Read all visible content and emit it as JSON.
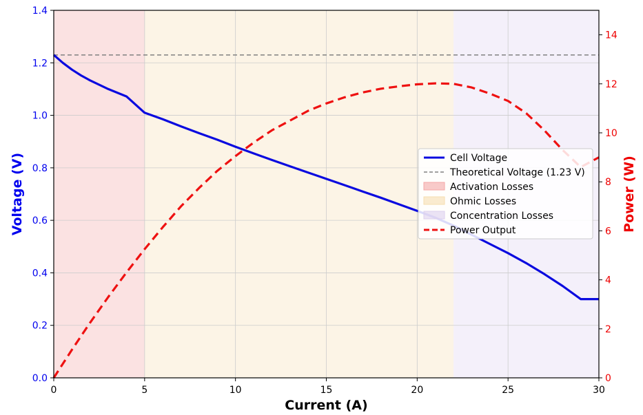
{
  "chart_data": {
    "type": "line",
    "title": "",
    "xlabel": "Current (A)",
    "ylabel": "Voltage (V)",
    "y2label": "Power (W)",
    "xlim": [
      0,
      30
    ],
    "ylim": [
      0,
      1.4
    ],
    "y2lim": [
      0,
      15
    ],
    "xticks": [
      "0",
      "5",
      "10",
      "15",
      "20",
      "25",
      "30"
    ],
    "yticks": [
      "0.0",
      "0.2",
      "0.4",
      "0.6",
      "0.8",
      "1.0",
      "1.2",
      "1.4"
    ],
    "y2ticks": [
      "0",
      "2",
      "4",
      "6",
      "8",
      "10",
      "12",
      "14"
    ],
    "grid": true,
    "legend_position": "center-right",
    "regions": [
      {
        "name": "Activation Losses",
        "x_start": 0,
        "x_end": 5,
        "color": "#f4a6a6"
      },
      {
        "name": "Ohmic Losses",
        "x_start": 5,
        "x_end": 22,
        "color": "#f6ddb0"
      },
      {
        "name": "Concentration Losses",
        "x_start": 22,
        "x_end": 30,
        "color": "#ddd0ee"
      }
    ],
    "reference_lines": [
      {
        "name": "Theoretical Voltage (1.23 V)",
        "y": 1.23,
        "axis": "left",
        "color": "#808080",
        "style": "dashed"
      }
    ],
    "series": [
      {
        "name": "Cell Voltage",
        "axis": "left",
        "color": "#0a0adf",
        "style": "solid",
        "x": [
          0,
          0.25,
          0.5,
          1,
          1.5,
          2,
          3,
          4,
          5,
          6,
          7,
          8,
          9,
          10,
          11,
          12,
          13,
          14,
          15,
          16,
          17,
          18,
          19,
          20,
          21,
          22,
          23,
          24,
          25,
          26,
          27,
          28,
          29,
          30
        ],
        "y": [
          1.23,
          1.215,
          1.2,
          1.174,
          1.152,
          1.133,
          1.1,
          1.072,
          1.01,
          0.985,
          0.958,
          0.932,
          0.907,
          0.88,
          0.855,
          0.83,
          0.806,
          0.782,
          0.758,
          0.734,
          0.71,
          0.686,
          0.661,
          0.636,
          0.61,
          0.58,
          0.545,
          0.51,
          0.475,
          0.437,
          0.395,
          0.35,
          0.3,
          0.3
        ]
      },
      {
        "name": "Power Output",
        "axis": "right",
        "color": "#ee1111",
        "style": "dashed",
        "x": [
          0,
          1,
          2,
          3,
          4,
          5,
          6,
          7,
          8,
          9,
          10,
          11,
          12,
          13,
          14,
          15,
          16,
          17,
          18,
          19,
          20,
          21,
          22,
          23,
          24,
          25,
          26,
          27,
          28,
          29,
          30
        ],
        "y": [
          0,
          1.15,
          2.25,
          3.3,
          4.3,
          5.25,
          6.15,
          7.0,
          7.75,
          8.45,
          9.05,
          9.6,
          10.1,
          10.5,
          10.9,
          11.2,
          11.45,
          11.65,
          11.8,
          11.9,
          11.98,
          12.02,
          12.0,
          11.85,
          11.6,
          11.3,
          10.8,
          10.1,
          9.3,
          8.6,
          9.0
        ]
      }
    ],
    "legend": [
      {
        "label": "Cell Voltage",
        "kind": "line",
        "color": "#0a0adf",
        "style": "solid"
      },
      {
        "label": "Theoretical Voltage (1.23 V)",
        "kind": "line",
        "color": "#808080",
        "style": "dashed"
      },
      {
        "label": "Activation Losses",
        "kind": "patch",
        "color": "#f4a6a6"
      },
      {
        "label": "Ohmic Losses",
        "kind": "patch",
        "color": "#f6ddb0"
      },
      {
        "label": "Concentration Losses",
        "kind": "patch",
        "color": "#ddd0ee"
      },
      {
        "label": "Power Output",
        "kind": "line",
        "color": "#ee1111",
        "style": "dashed"
      }
    ],
    "colors": {
      "left_axis": "#0000ee",
      "right_axis": "#ee0000",
      "grid": "#cccccc"
    }
  }
}
